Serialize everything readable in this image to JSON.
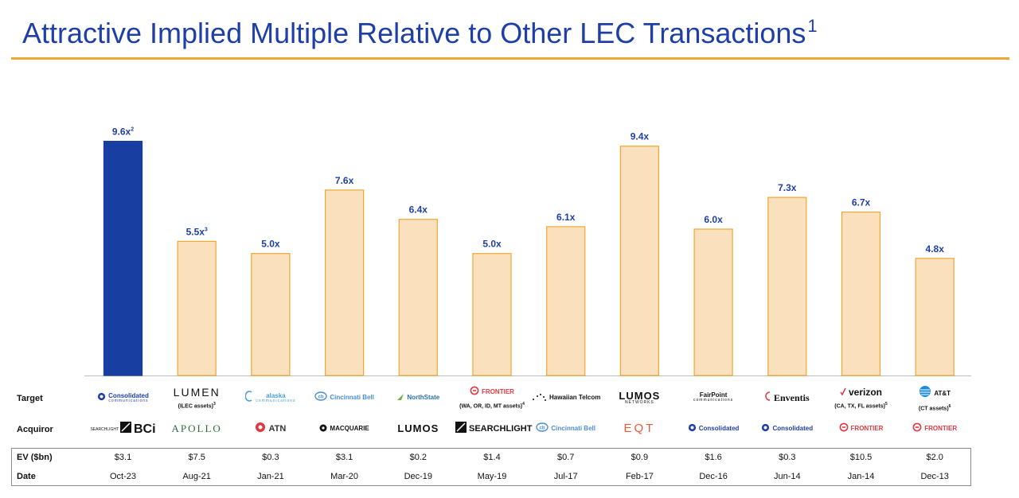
{
  "header": {
    "title": "Attractive Implied Multiple Relative to Other LEC Transactions",
    "title_footnote": "1"
  },
  "colors": {
    "title": "#1f3fa6",
    "rule": "#f0a631",
    "highlight_bar_fill": "#173ea0",
    "comparable_bar_fill": "#fbe0bd",
    "comparable_bar_stroke": "#f0a631"
  },
  "chart_data": {
    "type": "bar",
    "ylim": [
      0,
      10.5
    ],
    "grid": false,
    "categories": [
      "Oct-23",
      "Aug-21",
      "Jan-21",
      "Mar-20",
      "Dec-19",
      "May-19",
      "Jul-17",
      "Feb-17",
      "Dec-16",
      "Jun-14",
      "Jan-14",
      "Dec-13"
    ],
    "values": [
      9.6,
      5.5,
      5.0,
      7.6,
      6.4,
      5.0,
      6.1,
      9.4,
      6.0,
      7.3,
      6.7,
      4.8
    ],
    "labels": [
      "9.6x",
      "5.5x",
      "5.0x",
      "7.6x",
      "6.4x",
      "5.0x",
      "6.1x",
      "9.4x",
      "6.0x",
      "7.3x",
      "6.7x",
      "4.8x"
    ],
    "label_footnotes": [
      "2",
      "3",
      "",
      "",
      "",
      "",
      "",
      "",
      "",
      "",
      "",
      ""
    ],
    "highlight_index": 0
  },
  "table": {
    "row_labels": {
      "target": "Target",
      "acquiror": "Acquiror",
      "ev": "EV ($bn)",
      "date": "Date"
    },
    "targets": [
      {
        "logo": "Consolidated",
        "logo_sub": "communications",
        "icon": "consolidated-icon",
        "color": "#1f3fa6",
        "note": "",
        "note_sup": ""
      },
      {
        "logo": "LUMEN",
        "logo_sub": "",
        "icon": "",
        "color": "#111111",
        "note": "(ILEC assets)",
        "note_sup": "3"
      },
      {
        "logo": "alaska",
        "logo_sub": "communications",
        "icon": "alaska-icon",
        "color": "#4a9fd8",
        "note": "",
        "note_sup": ""
      },
      {
        "logo": "Cincinnati Bell",
        "logo_sub": "",
        "icon": "cincinnati-bell-icon",
        "color": "#4a8fd0",
        "note": "",
        "note_sup": ""
      },
      {
        "logo": "NorthState",
        "logo_sub": "",
        "icon": "northstate-icon",
        "color": "#2f6fa8",
        "note": "",
        "note_sup": ""
      },
      {
        "logo": "FRONTIER",
        "logo_sub": "",
        "icon": "frontier-icon",
        "color": "#e2383f",
        "note": "(WA, OR, ID, MT assets)",
        "note_sup": "4"
      },
      {
        "logo": "Hawaiian Telcom",
        "logo_sub": "",
        "icon": "hawaiian-telcom-icon",
        "color": "#111111",
        "note": "",
        "note_sup": ""
      },
      {
        "logo": "LUMOS",
        "logo_sub": "NETWORKS",
        "icon": "",
        "color": "#111111",
        "note": "",
        "note_sup": ""
      },
      {
        "logo": "FairPoint",
        "logo_sub": "communications",
        "icon": "",
        "color": "#111111",
        "note": "",
        "note_sup": ""
      },
      {
        "logo": "Enventis",
        "logo_sub": "",
        "icon": "enventis-icon",
        "color": "#111111",
        "note": "",
        "note_sup": ""
      },
      {
        "logo": "verizon",
        "logo_sub": "",
        "icon": "verizon-check-icon",
        "color": "#111111",
        "note": "(CA, TX, FL assets)",
        "note_sup": "5"
      },
      {
        "logo": "AT&T",
        "logo_sub": "",
        "icon": "att-globe-icon",
        "color": "#111111",
        "note": "(CT assets)",
        "note_sup": "6"
      }
    ],
    "acquirors": [
      {
        "logo": "BCi",
        "prefix": "SEARCHLIGHT",
        "icon": "searchlight-icon",
        "color": "#111111"
      },
      {
        "logo": "APOLLO",
        "prefix": "",
        "icon": "",
        "color": "#2e6b3e"
      },
      {
        "logo": "ATN",
        "prefix": "",
        "icon": "atn-icon",
        "color": "#333333"
      },
      {
        "logo": "MACQUARIE",
        "prefix": "",
        "icon": "macquarie-icon",
        "color": "#111111"
      },
      {
        "logo": "LUMOS",
        "prefix": "",
        "icon": "",
        "color": "#111111"
      },
      {
        "logo": "SEARCHLIGHT",
        "prefix": "",
        "icon": "searchlight-icon",
        "color": "#111111"
      },
      {
        "logo": "Cincinnati Bell",
        "prefix": "",
        "icon": "cincinnati-bell-icon",
        "color": "#4a8fd0"
      },
      {
        "logo": "EQT",
        "prefix": "",
        "icon": "",
        "color": "#e85a3a"
      },
      {
        "logo": "Consolidated",
        "prefix": "",
        "icon": "consolidated-icon",
        "color": "#1f3fa6"
      },
      {
        "logo": "Consolidated",
        "prefix": "",
        "icon": "consolidated-icon",
        "color": "#1f3fa6"
      },
      {
        "logo": "FRONTIER",
        "prefix": "",
        "icon": "frontier-icon",
        "color": "#e2383f"
      },
      {
        "logo": "FRONTIER",
        "prefix": "",
        "icon": "frontier-icon",
        "color": "#e2383f"
      }
    ],
    "ev": [
      "$3.1",
      "$7.5",
      "$0.3",
      "$3.1",
      "$0.2",
      "$1.4",
      "$0.7",
      "$0.9",
      "$1.6",
      "$0.3",
      "$10.5",
      "$2.0"
    ],
    "dates": [
      "Oct-23",
      "Aug-21",
      "Jan-21",
      "Mar-20",
      "Dec-19",
      "May-19",
      "Jul-17",
      "Feb-17",
      "Dec-16",
      "Jun-14",
      "Jan-14",
      "Dec-13"
    ]
  }
}
